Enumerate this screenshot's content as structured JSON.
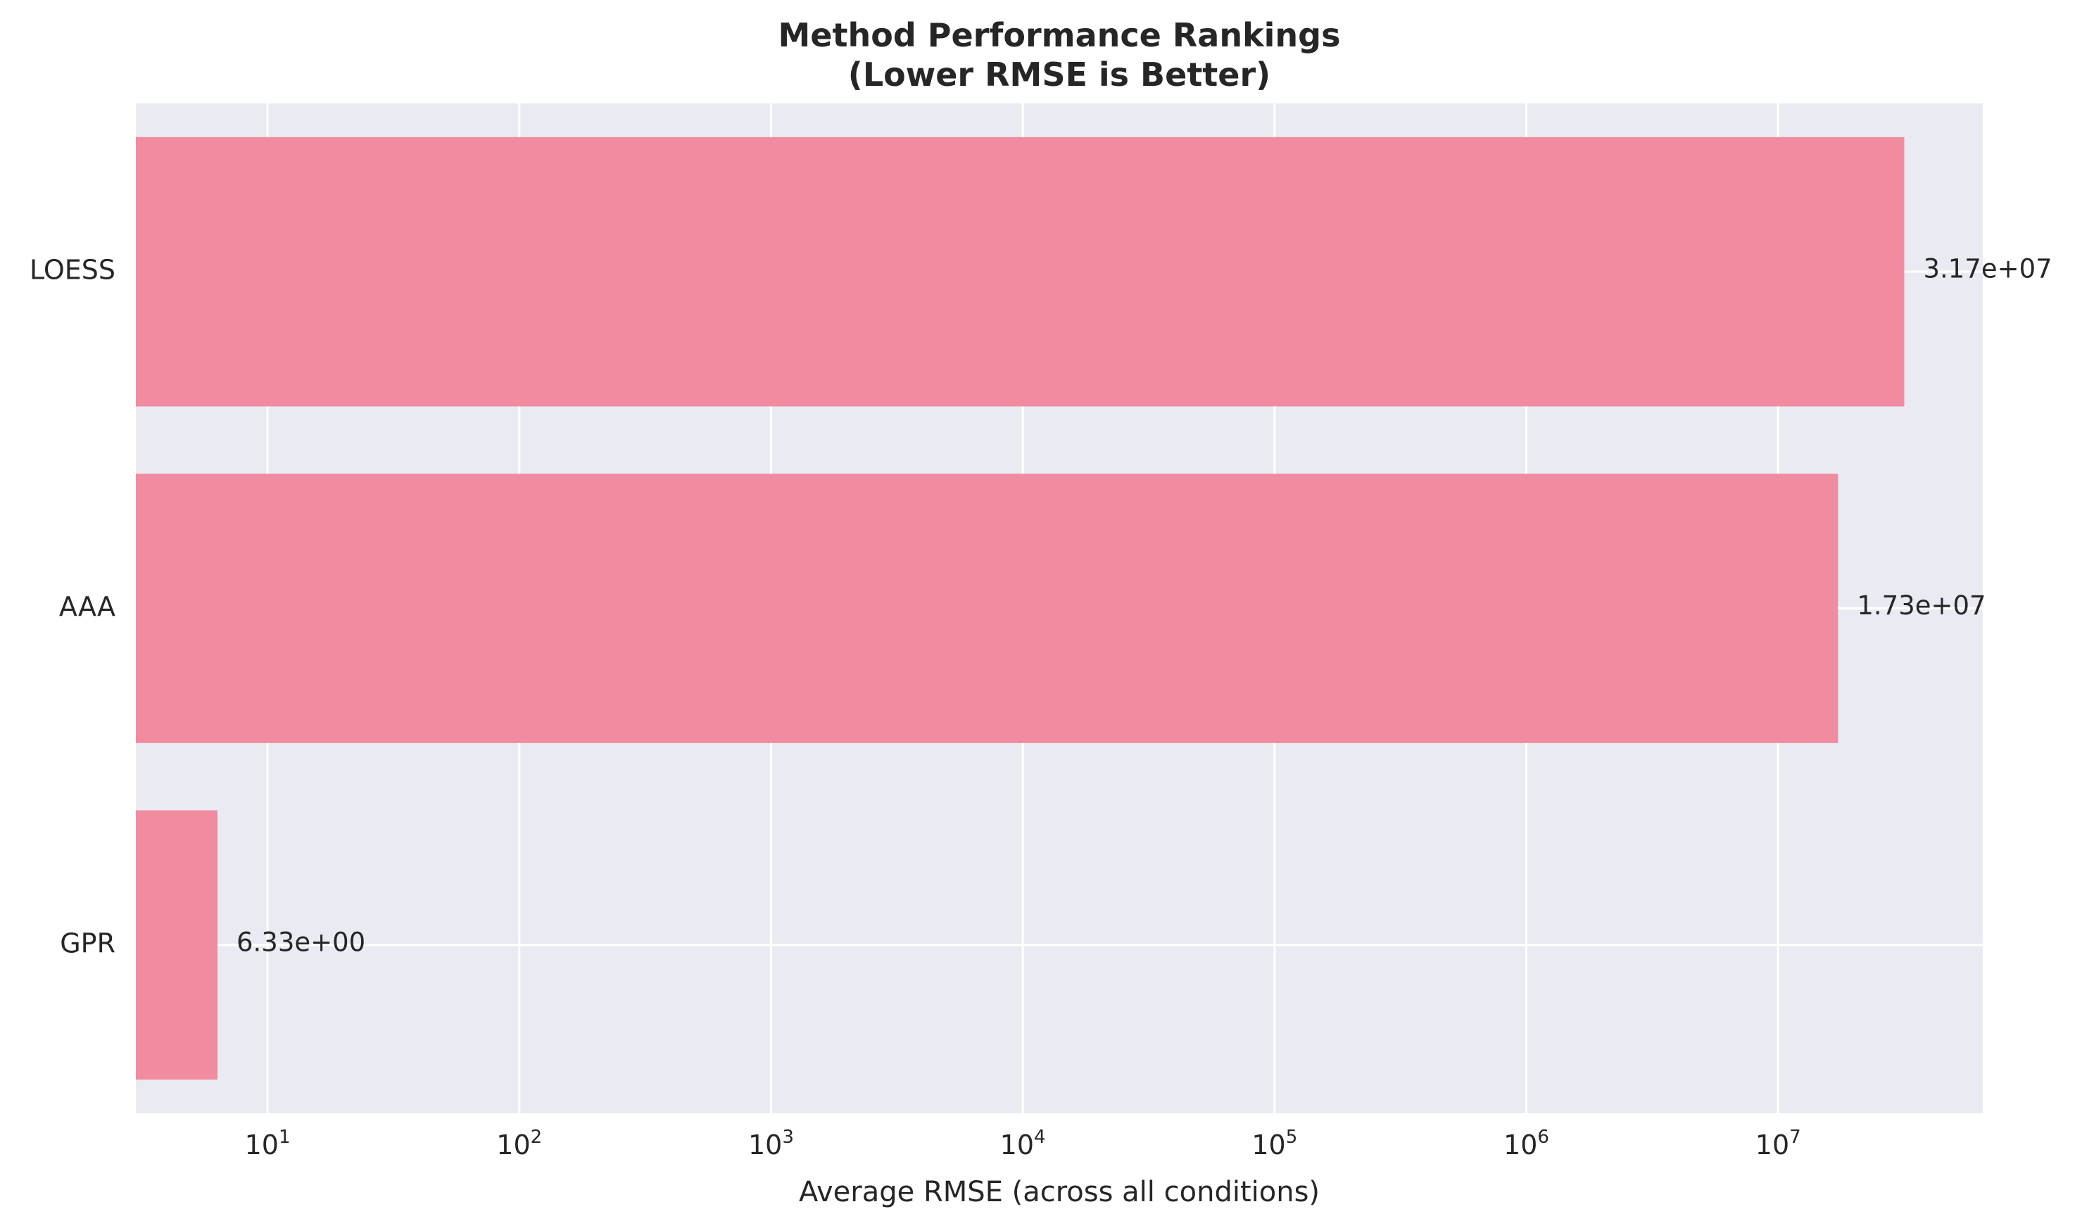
{
  "chart_data": {
    "type": "bar",
    "orientation": "horizontal",
    "title": "Method Performance Rankings",
    "subtitle": "(Lower RMSE is Better)",
    "xlabel": "Average RMSE (across all conditions)",
    "ylabel": "",
    "xscale": "log",
    "xlim": [
      3,
      65000000
    ],
    "xticks": [
      {
        "value": 10,
        "base": "10",
        "exp": "1"
      },
      {
        "value": 100,
        "base": "10",
        "exp": "2"
      },
      {
        "value": 1000,
        "base": "10",
        "exp": "3"
      },
      {
        "value": 10000,
        "base": "10",
        "exp": "4"
      },
      {
        "value": 100000,
        "base": "10",
        "exp": "5"
      },
      {
        "value": 1000000,
        "base": "10",
        "exp": "6"
      },
      {
        "value": 10000000,
        "base": "10",
        "exp": "7"
      }
    ],
    "categories": [
      "LOESS",
      "AAA",
      "GPR"
    ],
    "values": [
      31700000,
      17300000,
      6.33
    ],
    "value_labels": [
      "3.17e+07",
      "1.73e+07",
      "6.33e+00"
    ],
    "grid": true,
    "colors": {
      "bar": "#f08ba0",
      "plot_background": "#eaeaf2",
      "grid": "#ffffff",
      "text": "#262626"
    }
  }
}
